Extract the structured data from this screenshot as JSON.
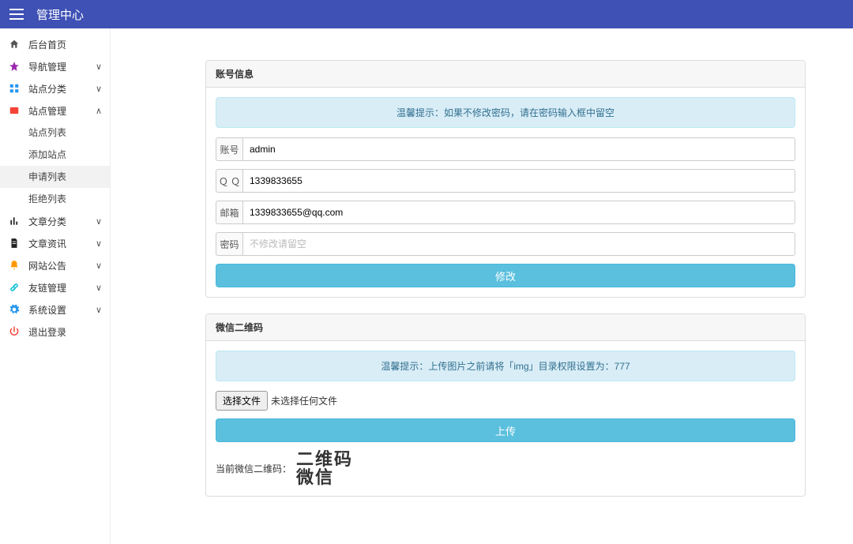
{
  "header": {
    "brand": "管理中心"
  },
  "sidebar": {
    "items": [
      {
        "label": "后台首页",
        "icon": "home",
        "color": "#555"
      },
      {
        "label": "导航管理",
        "icon": "nav",
        "color": "#9c27b0",
        "expandable": true
      },
      {
        "label": "站点分类",
        "icon": "cat",
        "color": "#2196f3",
        "expandable": true
      },
      {
        "label": "站点管理",
        "icon": "site",
        "color": "#f44336",
        "expandable": true,
        "open": true,
        "children": [
          {
            "label": "站点列表"
          },
          {
            "label": "添加站点"
          },
          {
            "label": "申请列表",
            "active": true
          },
          {
            "label": "拒绝列表"
          }
        ]
      },
      {
        "label": "文章分类",
        "icon": "chart",
        "color": "#222",
        "expandable": true
      },
      {
        "label": "文章资讯",
        "icon": "doc",
        "color": "#222",
        "expandable": true
      },
      {
        "label": "网站公告",
        "icon": "bell",
        "color": "#ff9800",
        "expandable": true
      },
      {
        "label": "友链管理",
        "icon": "link",
        "color": "#00bcd4",
        "expandable": true
      },
      {
        "label": "系统设置",
        "icon": "gear",
        "color": "#2196f3",
        "expandable": true
      },
      {
        "label": "退出登录",
        "icon": "power",
        "color": "#f44336"
      }
    ]
  },
  "account_panel": {
    "title": "账号信息",
    "tip": "温馨提示：如果不修改密码，请在密码输入框中留空",
    "fields": {
      "username": {
        "label": "账号",
        "value": "admin"
      },
      "qq": {
        "label": "Ｑ Ｑ",
        "value": "1339833655"
      },
      "email": {
        "label": "邮箱",
        "value": "1339833655@qq.com"
      },
      "password": {
        "label": "密码",
        "placeholder": "不修改请留空"
      }
    },
    "submit": "修改"
  },
  "qr_panel": {
    "title": "微信二维码",
    "tip": "温馨提示：上传图片之前请将「img」目录权限设置为：777",
    "choose_btn": "选择文件",
    "no_file": "未选择任何文件",
    "upload_btn": "上传",
    "current_label": "当前微信二维码：",
    "qr_line1": "二维码",
    "qr_line2": "微信"
  },
  "colors": {
    "primary": "#3f51b5",
    "info_btn": "#5bc0de",
    "alert_bg": "#d9edf7",
    "alert_border": "#bce8f1",
    "alert_text": "#31708f"
  }
}
